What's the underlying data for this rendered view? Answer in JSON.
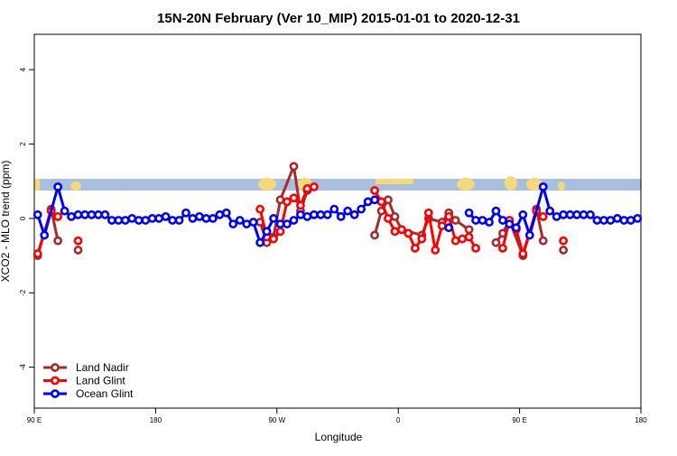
{
  "chart_data": {
    "type": "line",
    "title": "15N-20N February (Ver 10_MIP)   2015-01-01 to 2020-12-31",
    "x_label": "Longitude",
    "y_label": "XCO2 - MLO trend (ppm)",
    "xlim": [
      90,
      540
    ],
    "ylim": [
      -5.1,
      4.95
    ],
    "xticks": [
      {
        "value": 90,
        "label": "90 E"
      },
      {
        "value": 180,
        "label": "180"
      },
      {
        "value": 270,
        "label": "90 W"
      },
      {
        "value": 360,
        "label": "0"
      },
      {
        "value": 450,
        "label": "90 E"
      },
      {
        "value": 540,
        "label": "180"
      }
    ],
    "yticks": [
      -4,
      -2,
      0,
      2,
      4
    ],
    "legend": "bottom-left",
    "series": [
      {
        "name": "Land Nadir",
        "color": "#a52a2a",
        "x": [
          92.5,
          102.5,
          107.5,
          112.5,
          122.5,
          127.5,
          257.5,
          262.5,
          267.5,
          272.5,
          282.5,
          287.5,
          292.5,
          297.5,
          342.5,
          347.5,
          352.5,
          357.5,
          362.5,
          377.5,
          382.5,
          392.5,
          397.5,
          402.5,
          412.5,
          417.5,
          432.5,
          437.5,
          442.5,
          452.5,
          462.5,
          467.5,
          472.5,
          482.5
        ],
        "values": [
          -1.0,
          0.25,
          -0.6,
          null,
          -0.85,
          null,
          -0.1,
          -0.65,
          -0.5,
          0.5,
          1.4,
          0.2,
          0.75,
          null,
          -0.45,
          0.2,
          0.5,
          0.05,
          -0.3,
          -0.45,
          0,
          -0.1,
          0.15,
          -0.05,
          -0.3,
          null,
          -0.65,
          -0.4,
          -0.05,
          -1.0,
          0.25,
          -0.6,
          null,
          -0.85
        ]
      },
      {
        "name": "Land Glint",
        "color": "#ff0000",
        "x": [
          92.5,
          102.5,
          107.5,
          112.5,
          122.5,
          127.5,
          257.5,
          262.5,
          267.5,
          272.5,
          277.5,
          282.5,
          287.5,
          292.5,
          297.5,
          302.5,
          342.5,
          347.5,
          352.5,
          357.5,
          362.5,
          367.5,
          372.5,
          377.5,
          382.5,
          387.5,
          392.5,
          397.5,
          402.5,
          407.5,
          412.5,
          417.5,
          422.5,
          437.5,
          442.5,
          447.5,
          452.5,
          462.5,
          467.5,
          472.5,
          482.5
        ],
        "values": [
          -0.95,
          0.2,
          0.05,
          null,
          -0.6,
          null,
          0.25,
          -0.5,
          -0.55,
          -0.35,
          0.45,
          0.55,
          0.35,
          0.8,
          0.85,
          null,
          0.75,
          0.45,
          0,
          -0.35,
          -0.3,
          -0.4,
          -0.8,
          -0.55,
          0.15,
          -0.85,
          -0.2,
          0.05,
          -0.6,
          -0.55,
          -0.5,
          -0.8,
          null,
          -0.8,
          -0.05,
          -0.3,
          -0.95,
          0.2,
          0.05,
          null,
          -0.6
        ]
      },
      {
        "name": "Ocean Glint",
        "color": "#0000ff",
        "x": [
          92.5,
          97.5,
          107.5,
          112.5,
          117.5,
          122.5,
          127.5,
          132.5,
          137.5,
          142.5,
          147.5,
          152.5,
          157.5,
          162.5,
          167.5,
          172.5,
          177.5,
          182.5,
          187.5,
          192.5,
          197.5,
          202.5,
          207.5,
          212.5,
          217.5,
          222.5,
          227.5,
          232.5,
          237.5,
          242.5,
          247.5,
          252.5,
          257.5,
          262.5,
          267.5,
          272.5,
          277.5,
          282.5,
          287.5,
          292.5,
          297.5,
          302.5,
          307.5,
          312.5,
          317.5,
          322.5,
          327.5,
          332.5,
          337.5,
          342.5,
          347.5,
          397.5,
          402.5,
          412.5,
          417.5,
          422.5,
          427.5,
          432.5,
          437.5,
          442.5,
          447.5,
          452.5,
          457.5,
          467.5,
          472.5,
          477.5,
          482.5,
          487.5,
          492.5,
          497.5,
          502.5,
          507.5,
          512.5,
          517.5,
          522.5,
          527.5,
          532.5,
          537.5
        ],
        "values": [
          0.1,
          -0.45,
          0.85,
          0.2,
          0.05,
          0.1,
          0.1,
          0.1,
          0.1,
          0.1,
          -0.05,
          -0.05,
          -0.05,
          0,
          -0.05,
          -0.05,
          0,
          0,
          0.05,
          -0.05,
          -0.05,
          0.15,
          0,
          0.05,
          0,
          0,
          0.1,
          0.15,
          -0.15,
          -0.05,
          -0.15,
          -0.1,
          -0.65,
          -0.35,
          0,
          -0.15,
          -0.15,
          -0.05,
          0.1,
          0.05,
          0.1,
          0.1,
          0.1,
          0.25,
          0.05,
          0.2,
          0.1,
          0.25,
          0.45,
          0.5,
          null,
          -0.25,
          null,
          0.15,
          -0.05,
          -0.05,
          -0.1,
          0.2,
          -0.05,
          -0.15,
          -0.25,
          0.1,
          -0.45,
          0.85,
          0.2,
          0.05,
          0.1,
          0.1,
          0.1,
          0.1,
          0.1,
          -0.05,
          -0.05,
          -0.05,
          0,
          -0.05,
          -0.05,
          0
        ]
      }
    ]
  }
}
